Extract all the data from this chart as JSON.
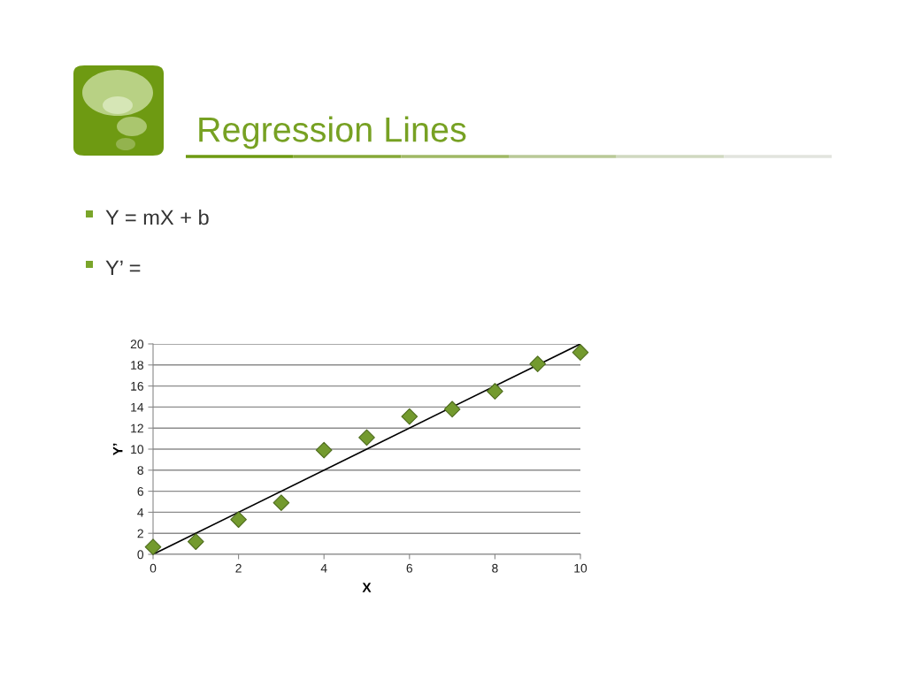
{
  "chart_data": {
    "type": "scatter",
    "title": "Regression Lines",
    "annotations": [
      "Y = mX + b",
      "Y’ ="
    ],
    "xlabel": "X",
    "ylabel": "Y’",
    "xlim": [
      0,
      10
    ],
    "xticks": [
      0,
      2,
      4,
      6,
      8,
      10
    ],
    "ylim": [
      0,
      20
    ],
    "yticks": [
      0,
      2,
      4,
      6,
      8,
      10,
      12,
      14,
      16,
      18,
      20
    ],
    "grid": "y",
    "series": [
      {
        "color": "#739a2e",
        "marker": "diamond",
        "x": [
          0,
          1,
          2,
          3,
          4,
          5,
          6,
          7,
          8,
          9,
          10
        ],
        "values": [
          0.7,
          1.2,
          3.3,
          4.9,
          9.9,
          11.1,
          13.1,
          13.8,
          15.5,
          18.1,
          19.2
        ]
      },
      {
        "type": "line",
        "color": "#000000",
        "marker": "none",
        "line_style": "solid",
        "x": [
          0,
          10
        ],
        "values": [
          0,
          20
        ]
      }
    ]
  }
}
